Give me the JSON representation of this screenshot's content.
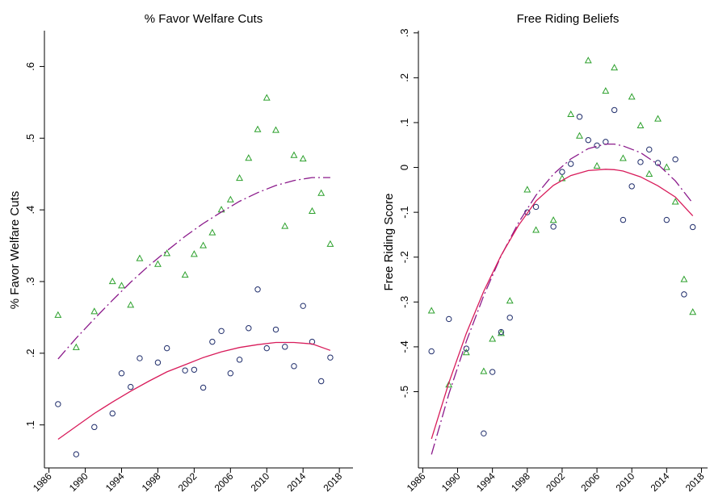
{
  "chart_data": [
    {
      "type": "scatter",
      "title": "% Favor Welfare Cuts",
      "xlabel": "",
      "ylabel": "% Favor Welfare Cuts",
      "xlim": [
        1985.5,
        2019.5
      ],
      "ylim": [
        0.04,
        0.65
      ],
      "xticks": [
        "1986",
        "1990",
        "1994",
        "1998",
        "2002",
        "2006",
        "2010",
        "2014",
        "2018"
      ],
      "yticks": [
        ".1",
        ".2",
        ".3",
        ".4",
        ".5",
        ".6"
      ],
      "grid": false,
      "legend": "none",
      "series": [
        {
          "marker": "triangle",
          "color": "#2ca02c",
          "points": [
            [
              1987,
              0.253
            ],
            [
              1989,
              0.208
            ],
            [
              1991,
              0.258
            ],
            [
              1993,
              0.3
            ],
            [
              1994,
              0.294
            ],
            [
              1995,
              0.267
            ],
            [
              1996,
              0.332
            ],
            [
              1998,
              0.324
            ],
            [
              1999,
              0.339
            ],
            [
              2001,
              0.309
            ],
            [
              2002,
              0.338
            ],
            [
              2003,
              0.35
            ],
            [
              2004,
              0.368
            ],
            [
              2005,
              0.4
            ],
            [
              2006,
              0.414
            ],
            [
              2007,
              0.444
            ],
            [
              2008,
              0.472
            ],
            [
              2009,
              0.512
            ],
            [
              2010,
              0.556
            ],
            [
              2011,
              0.511
            ],
            [
              2012,
              0.377
            ],
            [
              2013,
              0.476
            ],
            [
              2014,
              0.471
            ],
            [
              2015,
              0.398
            ],
            [
              2016,
              0.423
            ],
            [
              2017,
              0.352
            ]
          ]
        },
        {
          "marker": "circle",
          "color": "#1f2d6b",
          "points": [
            [
              1987,
              0.129
            ],
            [
              1989,
              0.059
            ],
            [
              1991,
              0.097
            ],
            [
              1993,
              0.116
            ],
            [
              1994,
              0.172
            ],
            [
              1995,
              0.153
            ],
            [
              1996,
              0.193
            ],
            [
              1998,
              0.187
            ],
            [
              1999,
              0.207
            ],
            [
              2001,
              0.176
            ],
            [
              2002,
              0.177
            ],
            [
              2003,
              0.152
            ],
            [
              2004,
              0.216
            ],
            [
              2005,
              0.231
            ],
            [
              2006,
              0.172
            ],
            [
              2007,
              0.191
            ],
            [
              2008,
              0.235
            ],
            [
              2009,
              0.289
            ],
            [
              2010,
              0.207
            ],
            [
              2011,
              0.233
            ],
            [
              2012,
              0.209
            ],
            [
              2013,
              0.182
            ],
            [
              2014,
              0.266
            ],
            [
              2015,
              0.216
            ],
            [
              2016,
              0.161
            ],
            [
              2017,
              0.194
            ]
          ]
        },
        {
          "marker": "line",
          "style": "dash-dot",
          "color": "#8b1a8b",
          "points": [
            [
              1987,
              0.192
            ],
            [
              1989,
              0.221
            ],
            [
              1991,
              0.248
            ],
            [
              1993,
              0.274
            ],
            [
              1995,
              0.299
            ],
            [
              1997,
              0.322
            ],
            [
              1999,
              0.343
            ],
            [
              2001,
              0.363
            ],
            [
              2003,
              0.381
            ],
            [
              2005,
              0.397
            ],
            [
              2007,
              0.412
            ],
            [
              2009,
              0.424
            ],
            [
              2011,
              0.434
            ],
            [
              2013,
              0.441
            ],
            [
              2015,
              0.445
            ],
            [
              2017,
              0.445
            ]
          ]
        },
        {
          "marker": "line",
          "style": "solid",
          "color": "#d81b5a",
          "points": [
            [
              1987,
              0.08
            ],
            [
              1989,
              0.098
            ],
            [
              1991,
              0.116
            ],
            [
              1993,
              0.132
            ],
            [
              1995,
              0.147
            ],
            [
              1997,
              0.161
            ],
            [
              1999,
              0.174
            ],
            [
              2001,
              0.184
            ],
            [
              2003,
              0.194
            ],
            [
              2005,
              0.202
            ],
            [
              2007,
              0.208
            ],
            [
              2009,
              0.212
            ],
            [
              2011,
              0.215
            ],
            [
              2013,
              0.215
            ],
            [
              2015,
              0.213
            ],
            [
              2017,
              0.204
            ]
          ]
        }
      ]
    },
    {
      "type": "scatter",
      "title": "Free Riding Beliefs",
      "xlabel": "",
      "ylabel": "Free Riding Score",
      "xlim": [
        1985.5,
        2018.7
      ],
      "ylim": [
        -0.67,
        0.305
      ],
      "xticks": [
        "1986",
        "1990",
        "1994",
        "1998",
        "2002",
        "2006",
        "2010",
        "2014",
        "2018"
      ],
      "yticks": [
        ".3",
        ".2",
        ".1",
        "0",
        "-.1",
        "-.2",
        "-.3",
        "-.4",
        "-.5"
      ],
      "grid": false,
      "legend": "none",
      "series": [
        {
          "marker": "triangle",
          "color": "#2ca02c",
          "points": [
            [
              1987,
              -0.32
            ],
            [
              1989,
              -0.485
            ],
            [
              1991,
              -0.413
            ],
            [
              1993,
              -0.455
            ],
            [
              1994,
              -0.383
            ],
            [
              1995,
              -0.37
            ],
            [
              1996,
              -0.298
            ],
            [
              1998,
              -0.05
            ],
            [
              1999,
              -0.14
            ],
            [
              2001,
              -0.118
            ],
            [
              2002,
              -0.025
            ],
            [
              2003,
              0.118
            ],
            [
              2004,
              0.07
            ],
            [
              2005,
              0.238
            ],
            [
              2006,
              0.003
            ],
            [
              2007,
              0.17
            ],
            [
              2008,
              0.222
            ],
            [
              2009,
              0.02
            ],
            [
              2010,
              0.157
            ],
            [
              2011,
              0.093
            ],
            [
              2012,
              -0.015
            ],
            [
              2013,
              0.108
            ],
            [
              2014,
              0.0
            ],
            [
              2015,
              -0.077
            ],
            [
              2016,
              -0.25
            ],
            [
              2017,
              -0.323
            ]
          ]
        },
        {
          "marker": "circle",
          "color": "#1f2d6b",
          "points": [
            [
              1987,
              -0.41
            ],
            [
              1989,
              -0.338
            ],
            [
              1991,
              -0.404
            ],
            [
              1993,
              -0.593
            ],
            [
              1994,
              -0.456
            ],
            [
              1995,
              -0.367
            ],
            [
              1996,
              -0.335
            ],
            [
              1998,
              -0.1
            ],
            [
              1999,
              -0.088
            ],
            [
              2001,
              -0.132
            ],
            [
              2002,
              -0.01
            ],
            [
              2003,
              0.008
            ],
            [
              2004,
              0.113
            ],
            [
              2005,
              0.061
            ],
            [
              2006,
              0.049
            ],
            [
              2007,
              0.057
            ],
            [
              2008,
              0.128
            ],
            [
              2009,
              -0.117
            ],
            [
              2010,
              -0.042
            ],
            [
              2011,
              0.012
            ],
            [
              2012,
              0.04
            ],
            [
              2013,
              0.01
            ],
            [
              2014,
              -0.117
            ],
            [
              2015,
              0.018
            ],
            [
              2016,
              -0.283
            ],
            [
              2017,
              -0.133
            ]
          ]
        },
        {
          "marker": "line",
          "style": "dash-dot",
          "color": "#8b1a8b",
          "points": [
            [
              1987,
              -0.64
            ],
            [
              1989,
              -0.505
            ],
            [
              1991,
              -0.388
            ],
            [
              1993,
              -0.286
            ],
            [
              1995,
              -0.197
            ],
            [
              1997,
              -0.123
            ],
            [
              1999,
              -0.062
            ],
            [
              2001,
              -0.015
            ],
            [
              2003,
              0.019
            ],
            [
              2005,
              0.042
            ],
            [
              2007,
              0.052
            ],
            [
              2008,
              0.052
            ],
            [
              2009,
              0.048
            ],
            [
              2011,
              0.033
            ],
            [
              2013,
              0.007
            ],
            [
              2015,
              -0.03
            ],
            [
              2017,
              -0.08
            ]
          ]
        },
        {
          "marker": "line",
          "style": "solid",
          "color": "#d81b5a",
          "points": [
            [
              1987,
              -0.605
            ],
            [
              1989,
              -0.48
            ],
            [
              1991,
              -0.37
            ],
            [
              1993,
              -0.276
            ],
            [
              1995,
              -0.196
            ],
            [
              1997,
              -0.129
            ],
            [
              1999,
              -0.075
            ],
            [
              2001,
              -0.04
            ],
            [
              2003,
              -0.018
            ],
            [
              2005,
              -0.007
            ],
            [
              2007,
              -0.004
            ],
            [
              2008,
              -0.005
            ],
            [
              2009,
              -0.008
            ],
            [
              2011,
              -0.021
            ],
            [
              2013,
              -0.041
            ],
            [
              2015,
              -0.066
            ],
            [
              2017,
              -0.108
            ]
          ]
        }
      ]
    }
  ]
}
